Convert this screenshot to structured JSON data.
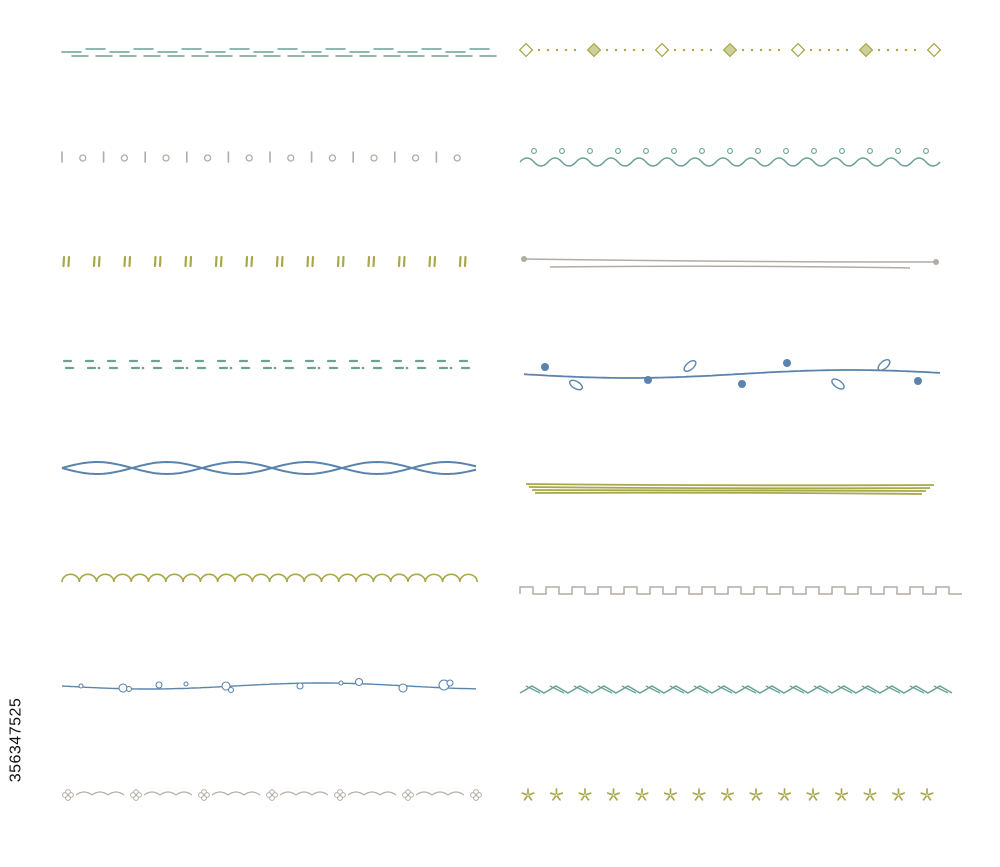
{
  "stock_id": "356347525",
  "palette": {
    "teal": "#6aa295",
    "olive": "#a8a84a",
    "gray": "#b3aba4",
    "blue": "#5b84ad"
  },
  "borders": [
    {
      "name": "dashed-teal-border",
      "style": "dashes-offset",
      "color": "teal"
    },
    {
      "name": "dots-diamonds-border",
      "style": "dots-diamonds",
      "color": "olive"
    },
    {
      "name": "bars-circles-border",
      "style": "bars-circles",
      "color": "gray"
    },
    {
      "name": "wave-dots-border",
      "style": "wave-dots",
      "color": "teal"
    },
    {
      "name": "double-ticks-border",
      "style": "double-ticks",
      "color": "olive"
    },
    {
      "name": "double-line-border",
      "style": "double-line-endpoints",
      "color": "gray"
    },
    {
      "name": "short-dashes-border",
      "style": "short-dashes",
      "color": "teal"
    },
    {
      "name": "vine-leaves-border",
      "style": "vine-leaves",
      "color": "blue"
    },
    {
      "name": "twisted-rope-border",
      "style": "twisted-rope",
      "color": "blue"
    },
    {
      "name": "multi-line-border",
      "style": "multi-line",
      "color": "olive"
    },
    {
      "name": "scallop-border",
      "style": "scallop",
      "color": "olive"
    },
    {
      "name": "square-wave-border",
      "style": "square-wave",
      "color": "gray"
    },
    {
      "name": "bubble-wave-border",
      "style": "bubble-wave",
      "color": "blue"
    },
    {
      "name": "zigzag-cross-border",
      "style": "zigzag-cross",
      "color": "teal"
    },
    {
      "name": "clover-swag-border",
      "style": "clover-swag",
      "color": "gray"
    },
    {
      "name": "star-row-border",
      "style": "stars",
      "color": "olive"
    }
  ]
}
